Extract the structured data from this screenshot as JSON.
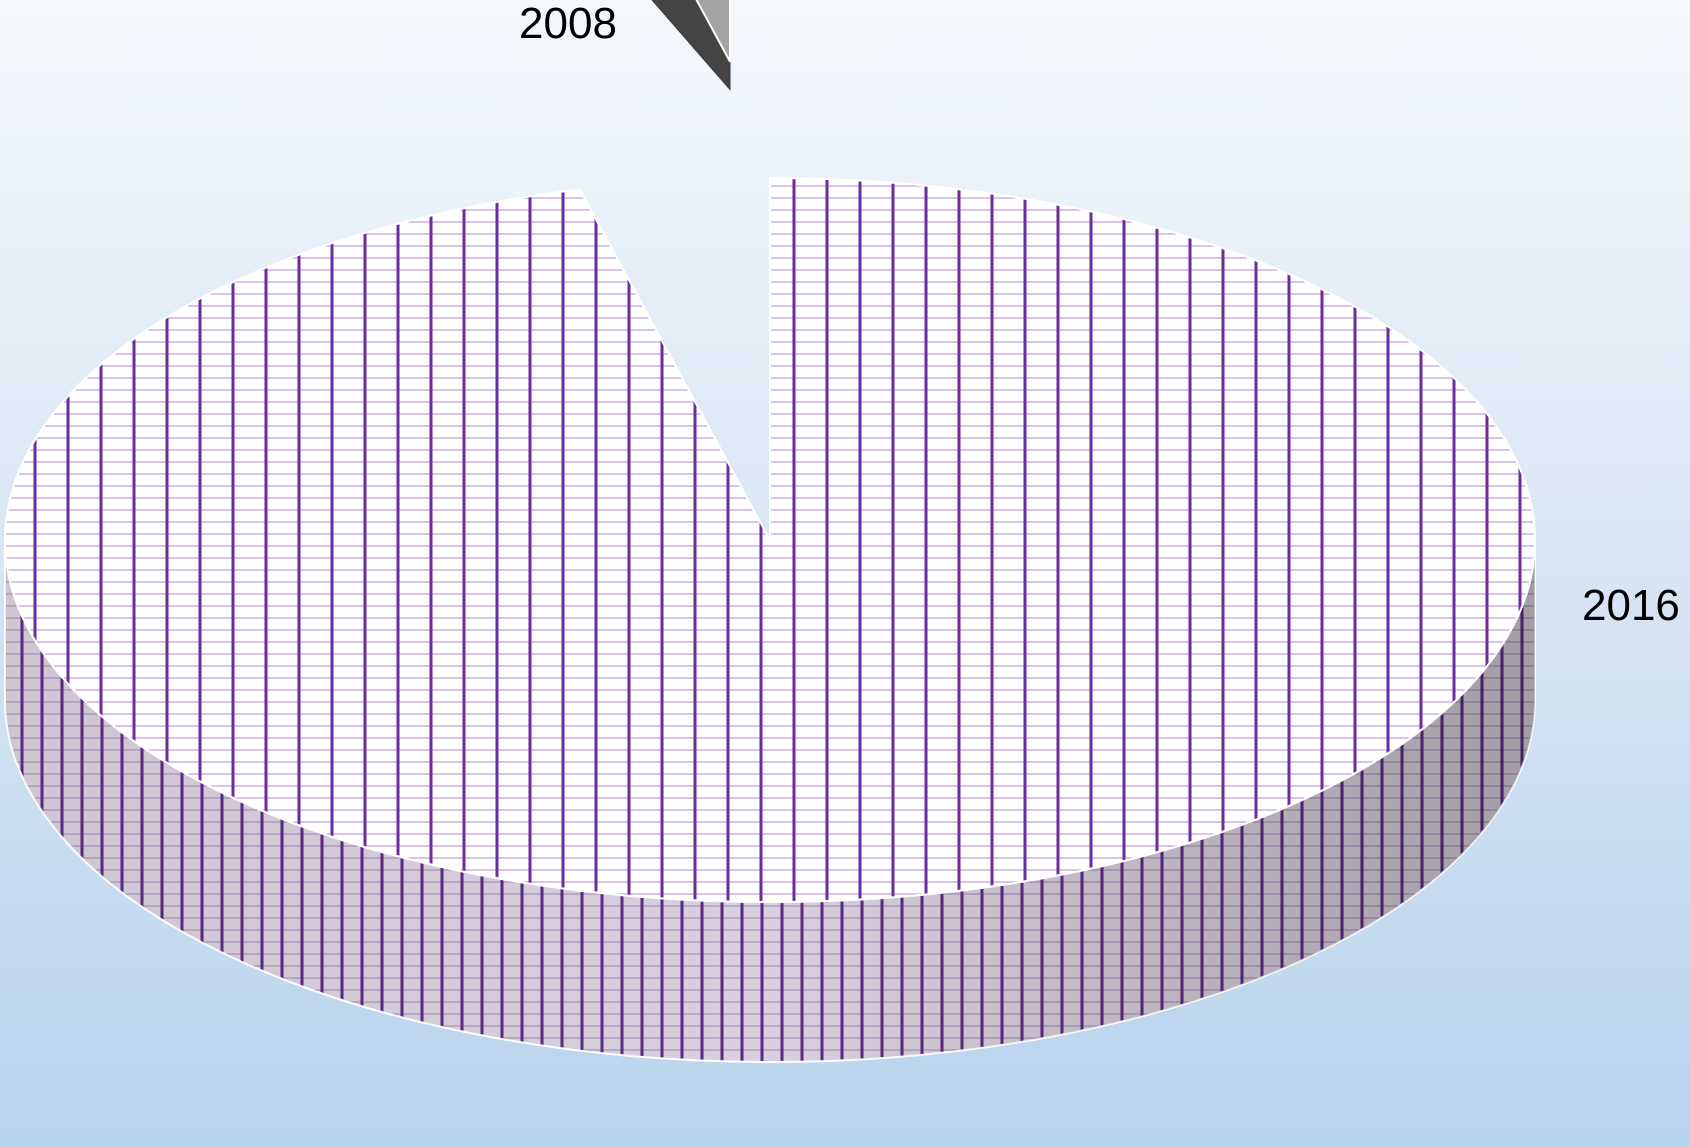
{
  "chart_data": {
    "type": "pie",
    "title": "",
    "slices": [
      {
        "label": "2008",
        "value": 4.0,
        "exploded": true,
        "colors": {
          "top": "#a3a3a3",
          "side": "#444444",
          "edge": "#3a3a3a"
        }
      },
      {
        "label": "2016",
        "value": 96.0,
        "exploded": false,
        "colors": {
          "hatch_line": "#6a2e9c",
          "hatch_fill": "#ffffff"
        }
      }
    ],
    "legend": "none",
    "style": "3d-pie",
    "background_colors": [
      "#f4f8fc",
      "#b8d3ec"
    ]
  }
}
